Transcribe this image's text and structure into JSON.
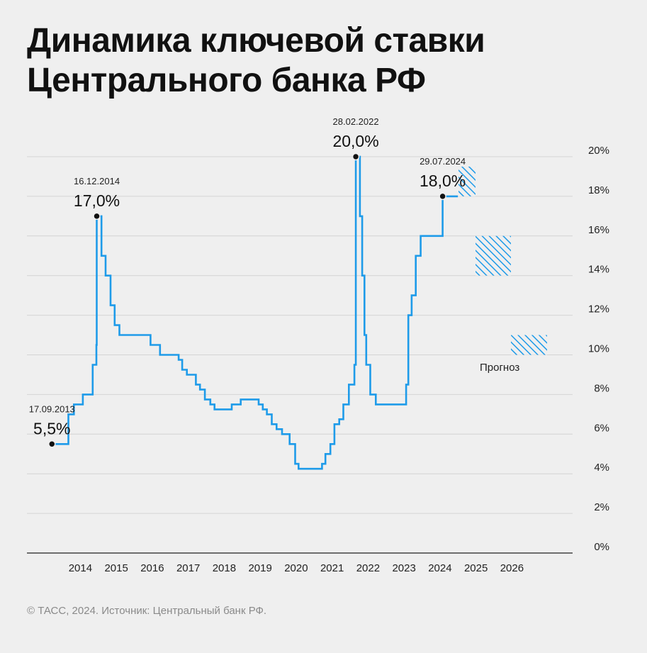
{
  "title": {
    "line1": "Динамика ключевой ставки",
    "line2": "Центрального банка РФ"
  },
  "footer": "© ТАСС, 2024. Источник: Центральный банк РФ.",
  "chart_data": {
    "type": "line",
    "title": "Динамика ключевой ставки Центрального банка РФ",
    "x_tick_labels": [
      "2014",
      "2015",
      "2016",
      "2017",
      "2018",
      "2019",
      "2020",
      "2021",
      "2022",
      "2023",
      "2024",
      "2025",
      "2026"
    ],
    "y_tick_labels": [
      "0%",
      "2%",
      "4%",
      "6%",
      "8%",
      "10%",
      "12%",
      "14%",
      "16%",
      "18%",
      "20%"
    ],
    "ylim": [
      0,
      20
    ],
    "xlim": [
      "2012-12-01",
      "2027-06-01"
    ],
    "grid": true,
    "y_axis_position": "right",
    "series_color": "#1e9be9",
    "series": [
      {
        "step": true,
        "x": [
          "2013-09-17",
          "2014-03-03",
          "2014-04-28",
          "2014-07-28",
          "2014-11-05",
          "2014-12-12",
          "2014-12-16",
          "2015-02-02",
          "2015-03-16",
          "2015-05-05",
          "2015-06-16",
          "2015-08-03",
          "2016-06-14",
          "2016-09-19",
          "2017-03-27",
          "2017-05-02",
          "2017-06-19",
          "2017-09-18",
          "2017-10-30",
          "2017-12-18",
          "2018-02-12",
          "2018-03-26",
          "2018-09-17",
          "2018-12-17",
          "2019-06-17",
          "2019-07-29",
          "2019-09-09",
          "2019-10-28",
          "2019-12-16",
          "2020-02-10",
          "2020-04-27",
          "2020-06-22",
          "2020-07-27",
          "2021-03-22",
          "2021-04-26",
          "2021-06-15",
          "2021-07-26",
          "2021-09-13",
          "2021-10-25",
          "2021-12-20",
          "2022-02-14",
          "2022-02-28",
          "2022-04-11",
          "2022-05-04",
          "2022-05-27",
          "2022-06-14",
          "2022-07-25",
          "2022-09-19",
          "2023-07-24",
          "2023-08-15",
          "2023-09-18",
          "2023-10-30",
          "2023-12-18",
          "2024-07-29",
          "2024-12-31"
        ],
        "y": [
          5.5,
          7.0,
          7.5,
          8.0,
          9.5,
          10.5,
          17.0,
          15.0,
          14.0,
          12.5,
          11.5,
          11.0,
          10.5,
          10.0,
          9.75,
          9.25,
          9.0,
          8.5,
          8.25,
          7.75,
          7.5,
          7.25,
          7.5,
          7.75,
          7.5,
          7.25,
          7.0,
          6.5,
          6.25,
          6.0,
          5.5,
          4.5,
          4.25,
          4.5,
          5.0,
          5.5,
          6.5,
          6.75,
          7.5,
          8.5,
          9.5,
          20.0,
          17.0,
          14.0,
          11.0,
          9.5,
          8.0,
          7.5,
          8.5,
          12.0,
          13.0,
          15.0,
          16.0,
          18.0,
          18.0
        ]
      }
    ],
    "annotations": [
      {
        "date_label": "17.09.2013",
        "value_label": "5,5%",
        "x": "2013-09-17",
        "y": 5.5
      },
      {
        "date_label": "16.12.2014",
        "value_label": "17,0%",
        "x": "2014-12-16",
        "y": 17.0
      },
      {
        "date_label": "28.02.2022",
        "value_label": "20,0%",
        "x": "2022-02-28",
        "y": 20.0
      },
      {
        "date_label": "29.07.2024",
        "value_label": "18,0%",
        "x": "2024-07-29",
        "y": 18.0
      }
    ],
    "forecast": {
      "label": "Прогноз",
      "ranges": [
        {
          "period": "2024 (остаток)",
          "y_range": [
            18.0,
            19.5
          ]
        },
        {
          "period": "2025",
          "y_range": [
            14.0,
            16.0
          ]
        },
        {
          "period": "2026",
          "y_range": [
            10.0,
            11.0
          ]
        }
      ]
    }
  }
}
